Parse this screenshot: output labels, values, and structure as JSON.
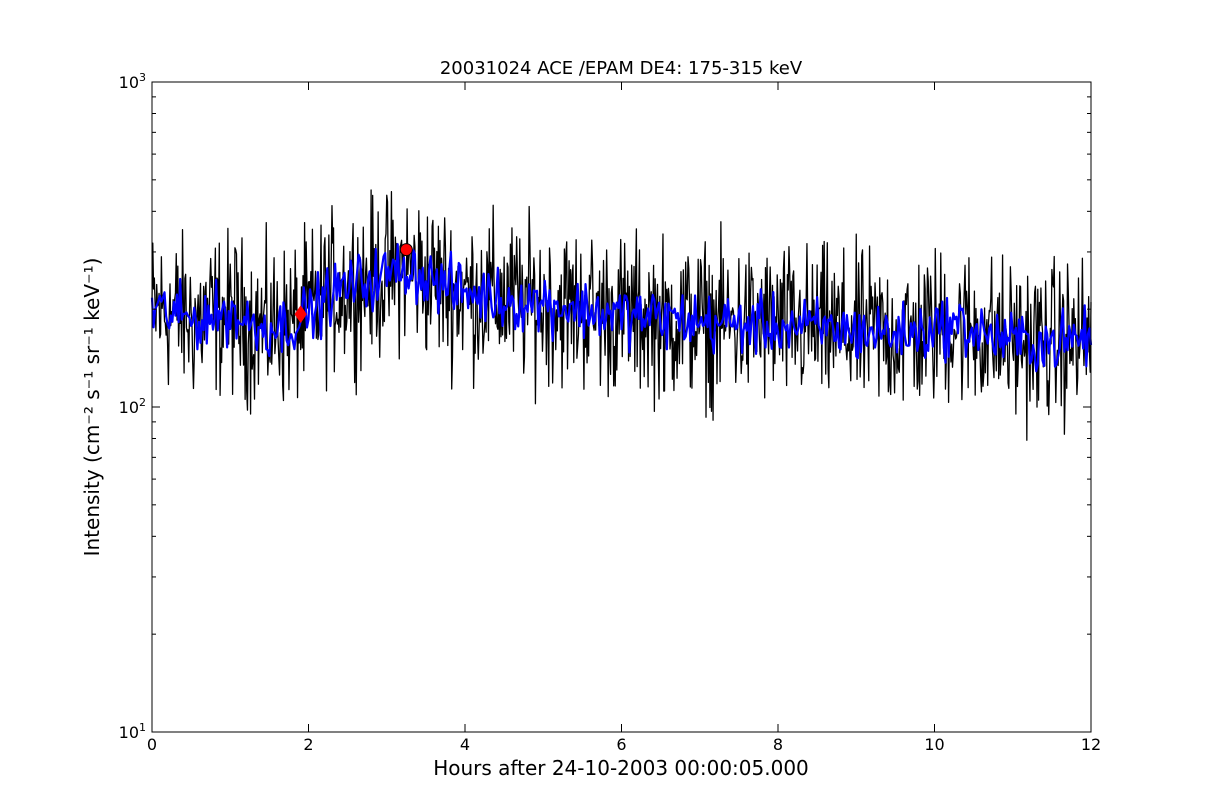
{
  "chart_data": {
    "type": "line",
    "title": "20031024 ACE /EPAM DE4: 175-315 keV",
    "xlabel": "Hours after 24-10-2003 00:00:05.000",
    "ylabel": "Intensity (cm⁻² s⁻¹ sr⁻¹ keV⁻¹)",
    "xlim": [
      0,
      12
    ],
    "ylim": [
      10,
      1000
    ],
    "yscale": "log",
    "grid": false,
    "x_ticks": [
      {
        "value": 0,
        "label": "0"
      },
      {
        "value": 2,
        "label": "2"
      },
      {
        "value": 4,
        "label": "4"
      },
      {
        "value": 6,
        "label": "6"
      },
      {
        "value": 8,
        "label": "8"
      },
      {
        "value": 10,
        "label": "10"
      },
      {
        "value": 12,
        "label": "12"
      }
    ],
    "y_ticks": [
      {
        "value": 10,
        "base": "10",
        "exp": "1"
      },
      {
        "value": 100,
        "base": "10",
        "exp": "2"
      },
      {
        "value": 1000,
        "base": "10",
        "exp": "3"
      }
    ],
    "series": [
      {
        "kind": "raw-intensity",
        "color": "#000000",
        "x": [
          0,
          0.25,
          0.5,
          0.75,
          1,
          1.25,
          1.5,
          1.75,
          1.9,
          2,
          2.25,
          2.5,
          2.75,
          3,
          3.25,
          3.5,
          3.75,
          4,
          4.25,
          4.5,
          4.75,
          5,
          5.25,
          5.5,
          5.75,
          6,
          6.25,
          6.5,
          6.75,
          7,
          7.25,
          7.5,
          7.75,
          8,
          8.25,
          8.5,
          8.75,
          9,
          9.25,
          9.5,
          9.75,
          10,
          10.25,
          10.5,
          10.75,
          11,
          11.25,
          11.5,
          11.75,
          12
        ],
        "y": [
          200,
          195,
          185,
          190,
          195,
          180,
          175,
          180,
          185,
          195,
          220,
          235,
          245,
          255,
          270,
          250,
          235,
          225,
          220,
          215,
          210,
          210,
          205,
          200,
          195,
          192,
          190,
          188,
          186,
          182,
          182,
          180,
          178,
          178,
          176,
          175,
          172,
          170,
          170,
          168,
          168,
          175,
          180,
          172,
          165,
          160,
          158,
          158,
          160,
          165
        ]
      },
      {
        "kind": "smoothed",
        "color": "#0000ff",
        "x": [
          0,
          0.25,
          0.5,
          0.75,
          1,
          1.25,
          1.5,
          1.75,
          1.9,
          2,
          2.25,
          2.5,
          2.75,
          3,
          3.25,
          3.5,
          3.75,
          4,
          4.25,
          4.5,
          4.75,
          5,
          5.25,
          5.5,
          5.75,
          6,
          6.25,
          6.5,
          6.75,
          7,
          7.25,
          7.5,
          7.75,
          8,
          8.25,
          8.5,
          8.75,
          9,
          9.25,
          9.5,
          9.75,
          10,
          10.25,
          10.5,
          10.75,
          11,
          11.25,
          11.5,
          11.75,
          12
        ],
        "y": [
          200,
          195,
          185,
          190,
          195,
          180,
          175,
          180,
          185,
          195,
          220,
          235,
          245,
          255,
          270,
          250,
          235,
          225,
          220,
          215,
          210,
          210,
          205,
          200,
          195,
          192,
          190,
          188,
          186,
          182,
          182,
          180,
          178,
          178,
          176,
          175,
          172,
          170,
          170,
          168,
          168,
          175,
          180,
          172,
          165,
          160,
          158,
          158,
          160,
          165
        ]
      }
    ],
    "dips": [
      {
        "x": 6.55,
        "y": 112
      },
      {
        "x": 7.15,
        "y": 97
      }
    ],
    "markers": [
      {
        "shape": "diamond",
        "x": 1.9,
        "y": 193,
        "color": "#ff0000"
      },
      {
        "shape": "circle",
        "x": 3.25,
        "y": 305,
        "color": "#ff0000"
      }
    ],
    "frame_color": "#000000"
  }
}
